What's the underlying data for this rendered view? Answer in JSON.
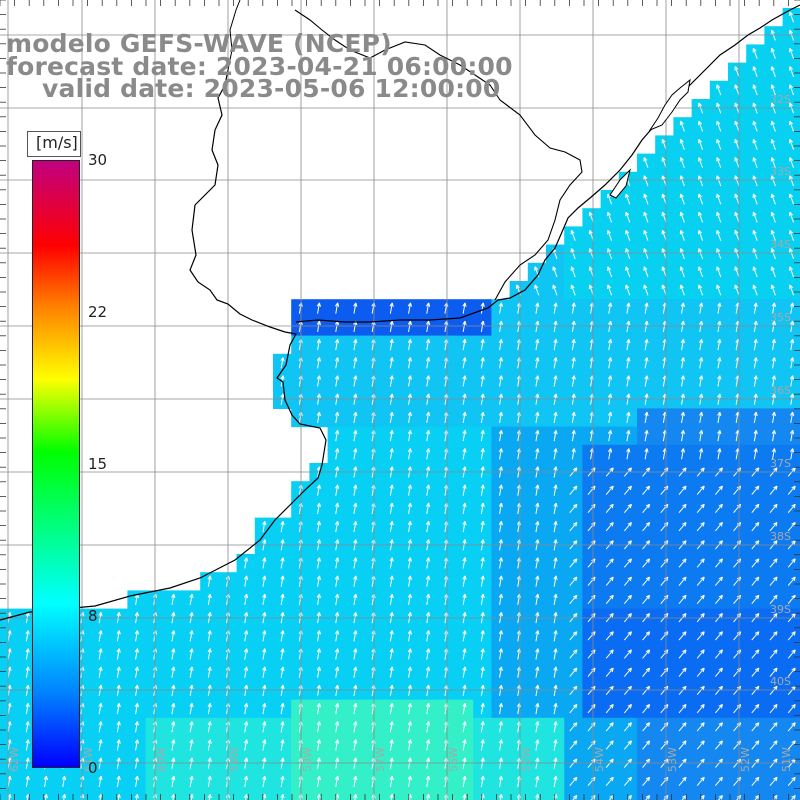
{
  "title": {
    "line1": "modelo GEFS-WAVE (NCEP)",
    "line2": "forecast date: 2023-04-21 06:00:00",
    "line3": "valid date: 2023-05-06 12:00:00"
  },
  "colorbar": {
    "unit": "[m/s]",
    "ticks": [
      "30",
      "22",
      "15",
      "8",
      "0"
    ],
    "tick_values": [
      30,
      22,
      15,
      8,
      0
    ],
    "min": 0,
    "max": 30
  },
  "lat_labels": [
    "32S",
    "33S",
    "34S",
    "35S",
    "36S",
    "37S",
    "38S",
    "39S",
    "40S"
  ],
  "lon_labels": [
    "62W",
    "61W",
    "60W",
    "59W",
    "58W",
    "57W",
    "56W",
    "55W",
    "54W",
    "53W",
    "52W",
    "51W"
  ],
  "colors": {
    "land": "#ffffff",
    "coast": "#000000",
    "grid": "#8a8a8a",
    "arrow": "#ffffff",
    "title": "#8a8a8a"
  }
}
